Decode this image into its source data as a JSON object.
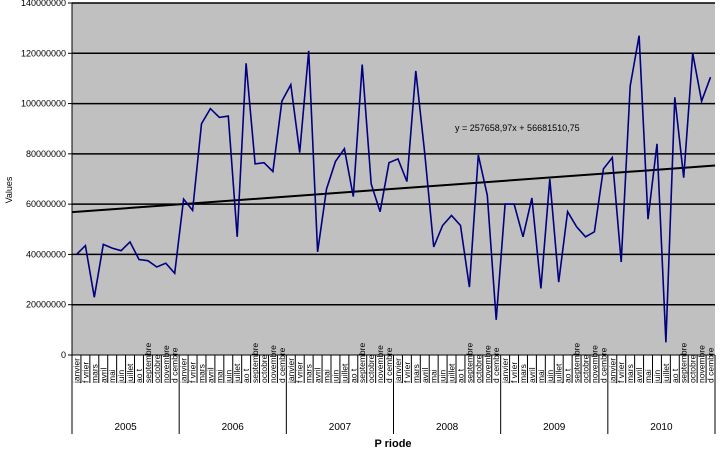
{
  "chart_data": {
    "type": "line",
    "title": "",
    "xlabel": "P riode",
    "ylabel": "Values",
    "ylim": [
      0,
      140000000
    ],
    "yticks": [
      "0",
      "20000000",
      "40000000",
      "60000000",
      "80000000",
      "100000000",
      "120000000",
      "140000000"
    ],
    "ytick_values": [
      0,
      20000000,
      40000000,
      60000000,
      80000000,
      100000000,
      120000000,
      140000000
    ],
    "grid": "horizontal",
    "colors": {
      "plot_bg": "#c0c0c0",
      "series": "#000080",
      "trend": "#000000",
      "grid": "#000000"
    },
    "months": [
      "janvier",
      "f vrier",
      "mars",
      "avril",
      "mai",
      "juin",
      "juillet",
      "ao t",
      "septembre",
      "octobre",
      "novembre",
      "d cembre"
    ],
    "years": [
      "2005",
      "2006",
      "2007",
      "2008",
      "2009",
      "2010"
    ],
    "series": [
      {
        "values": [
          40000000,
          43500000,
          23000000,
          44000000,
          42500000,
          41500000,
          45000000,
          38000000,
          37500000,
          35000000,
          36500000,
          32500000,
          62000000,
          57500000,
          92000000,
          98000000,
          94500000,
          95000000,
          47000000,
          116000000,
          76000000,
          76500000,
          73000000,
          101000000,
          107500000,
          80500000,
          121000000,
          41000000,
          66000000,
          77000000,
          82000000,
          63000000,
          115500000,
          68000000,
          57000000,
          76500000,
          78000000,
          69000000,
          113000000,
          80000000,
          43000000,
          51500000,
          55500000,
          51500000,
          27000000,
          79500000,
          63500000,
          14000000,
          60000000,
          60000000,
          47000000,
          62500000,
          26500000,
          70000000,
          29000000,
          57000000,
          51000000,
          47000000,
          49000000,
          74000000,
          78500000,
          37000000,
          107000000,
          127000000,
          54000000,
          84000000,
          5000000,
          102500000,
          70500000,
          120000000,
          101000000,
          110500000
        ]
      }
    ],
    "trendline": {
      "label": "y = 257658,97x + 56681510,75",
      "slope": 257658.97,
      "intercept": 56681510.75
    }
  }
}
